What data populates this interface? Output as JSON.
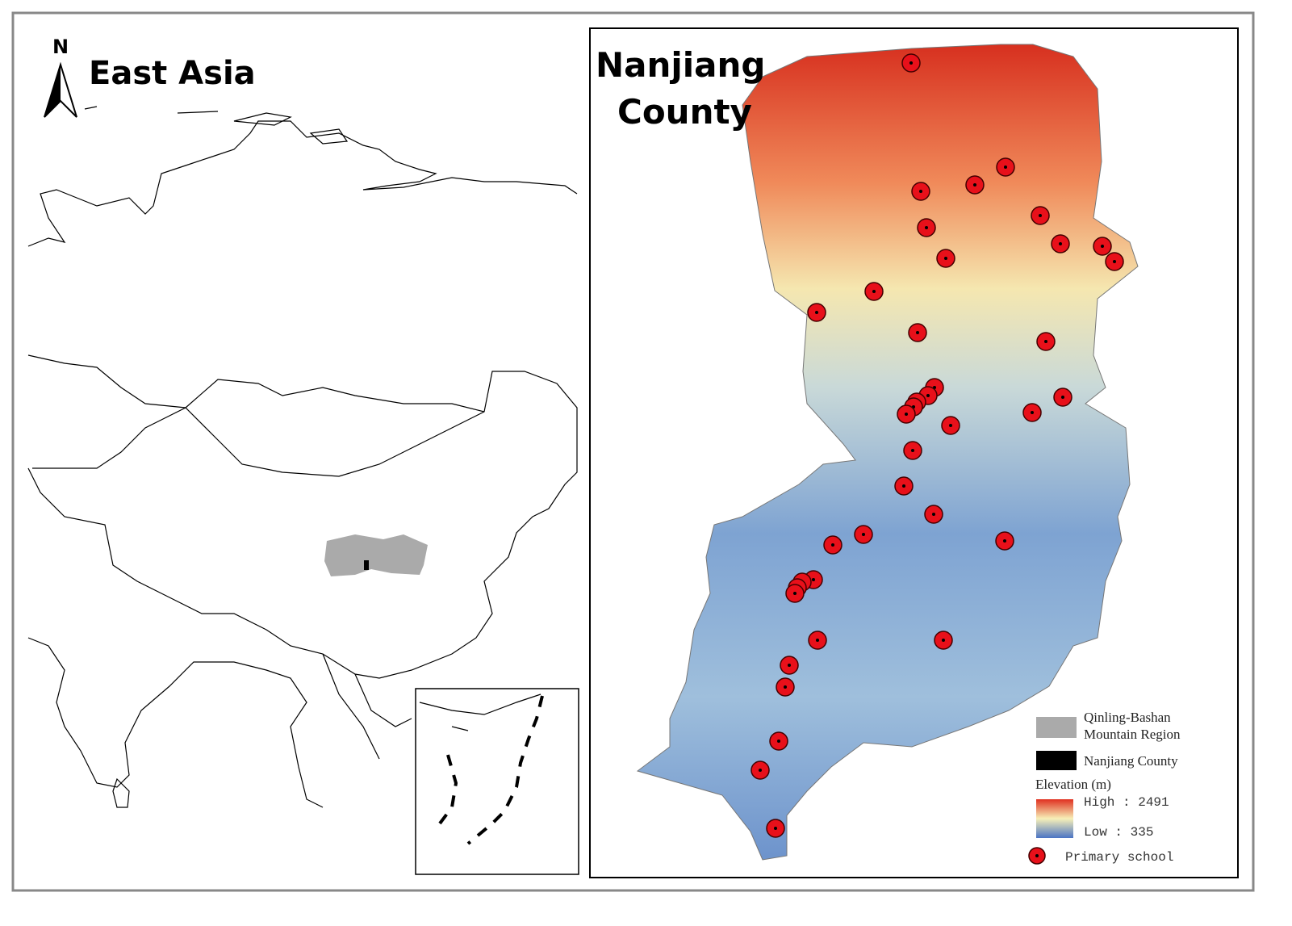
{
  "left_panel": {
    "north_label": "N",
    "title": "East Asia"
  },
  "right_panel": {
    "title_lines": [
      "Nanjiang",
      "County"
    ]
  },
  "legend": {
    "region_lines": [
      "Qinling-Bashan",
      "Mountain Region"
    ],
    "county": "Nanjiang County",
    "elevation_title": "Elevation (m)",
    "high": "High : 2491",
    "low": "Low : 335",
    "school": "Primary school"
  }
}
